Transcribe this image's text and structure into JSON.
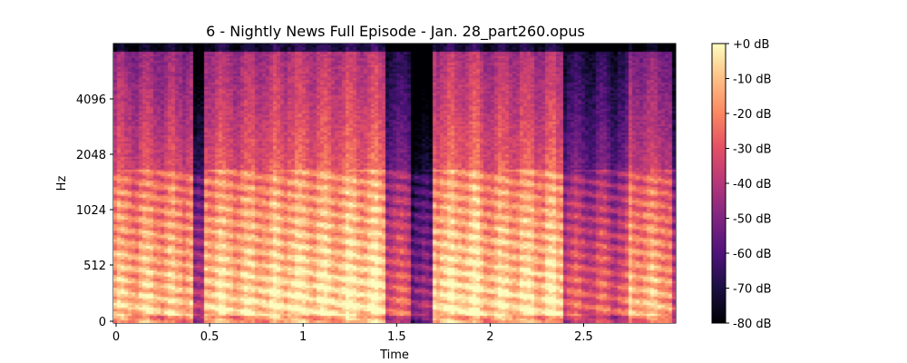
{
  "chart_data": {
    "type": "heatmap",
    "title": "6 - Nightly News Full Episode - Jan. 28_part260.opus",
    "xlabel": "Time",
    "ylabel": "Hz",
    "x_scale": "linear",
    "y_scale": "symlog (mel-like)",
    "xlim": [
      0,
      3.0
    ],
    "ylim_hz": [
      0,
      11025
    ],
    "x_ticks": [
      {
        "value": 0,
        "label": "0"
      },
      {
        "value": 0.5,
        "label": "0.5"
      },
      {
        "value": 1,
        "label": "1"
      },
      {
        "value": 1.5,
        "label": "1.5"
      },
      {
        "value": 2,
        "label": "2"
      },
      {
        "value": 2.5,
        "label": "2.5"
      }
    ],
    "y_ticks": [
      {
        "value": 0,
        "label": "0"
      },
      {
        "value": 512,
        "label": "512"
      },
      {
        "value": 1024,
        "label": "1024"
      },
      {
        "value": 2048,
        "label": "2048"
      },
      {
        "value": 4096,
        "label": "4096"
      }
    ],
    "colormap": "magma",
    "colorbar": {
      "range_db": [
        -80,
        0
      ],
      "ticks": [
        {
          "value": 0,
          "label": "+0 dB"
        },
        {
          "value": -10,
          "label": "-10 dB"
        },
        {
          "value": -20,
          "label": "-20 dB"
        },
        {
          "value": -30,
          "label": "-30 dB"
        },
        {
          "value": -40,
          "label": "-40 dB"
        },
        {
          "value": -50,
          "label": "-50 dB"
        },
        {
          "value": -60,
          "label": "-60 dB"
        },
        {
          "value": -70,
          "label": "-70 dB"
        },
        {
          "value": -80,
          "label": "-80 dB"
        }
      ]
    },
    "segments": [
      {
        "t0": 0.0,
        "t1": 0.42,
        "strength": 0.85
      },
      {
        "t0": 0.42,
        "t1": 0.48,
        "strength": 0.3
      },
      {
        "t0": 0.48,
        "t1": 0.86,
        "strength": 0.9
      },
      {
        "t0": 0.86,
        "t1": 1.45,
        "strength": 0.95
      },
      {
        "t0": 1.45,
        "t1": 1.58,
        "strength": 0.55
      },
      {
        "t0": 1.58,
        "t1": 1.7,
        "strength": 0.25
      },
      {
        "t0": 1.7,
        "t1": 1.95,
        "strength": 0.95
      },
      {
        "t0": 1.95,
        "t1": 2.4,
        "strength": 0.92
      },
      {
        "t0": 2.4,
        "t1": 2.74,
        "strength": 0.55
      },
      {
        "t0": 2.74,
        "t1": 2.98,
        "strength": 0.8
      }
    ]
  }
}
